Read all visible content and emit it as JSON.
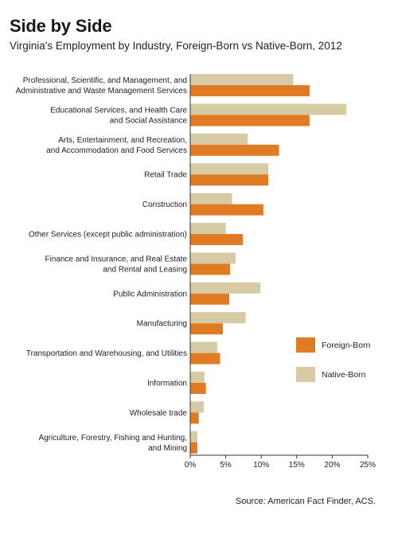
{
  "header": {
    "title": "Side by Side",
    "subtitle": "Virginia's Employment by Industry, Foreign-Born vs Native-Born, 2012"
  },
  "source": "Source: American Fact Finder, ACS.",
  "colors": {
    "native": "#d6cba4",
    "foreign": "#e07b24",
    "axis": "#333333"
  },
  "chart_data": {
    "type": "bar",
    "orientation": "horizontal",
    "categories": [
      [
        "Professional, Scientific, and Management, and",
        "Administrative and Waste Management Services"
      ],
      [
        "Educational Services, and Health Care",
        "and Social Assistance"
      ],
      [
        "Arts, Entertainment, and Recreation,",
        "and Accommodation and Food Services"
      ],
      [
        "Retail Trade"
      ],
      [
        "Construction"
      ],
      [
        "Other Services (except public administration)"
      ],
      [
        "Finance and Insurance, and Real Estate",
        "and Rental and Leasing"
      ],
      [
        "Public Administration"
      ],
      [
        "Manufacturing"
      ],
      [
        "Transportation and Warehousing, and Utilities"
      ],
      [
        "Information"
      ],
      [
        "Wholesale trade"
      ],
      [
        "Agriculture, Forestry, Fishing and Hunting,",
        "and Mining"
      ]
    ],
    "series": [
      {
        "name": "Native-Born",
        "values": [
          14.5,
          22.0,
          8.1,
          11.0,
          5.9,
          5.0,
          6.4,
          9.9,
          7.8,
          3.8,
          2.0,
          1.9,
          1.0
        ]
      },
      {
        "name": "Foreign-Born",
        "values": [
          16.8,
          16.8,
          12.5,
          11.0,
          10.3,
          7.4,
          5.6,
          5.5,
          4.6,
          4.2,
          2.2,
          1.2,
          1.0
        ]
      }
    ],
    "xlim": [
      0,
      25
    ],
    "xticks": [
      "0%",
      "5%",
      "10%",
      "15%",
      "20%",
      "25%"
    ],
    "legend": {
      "position": "right",
      "items": [
        "Foreign-Born",
        "Native-Born"
      ]
    }
  }
}
